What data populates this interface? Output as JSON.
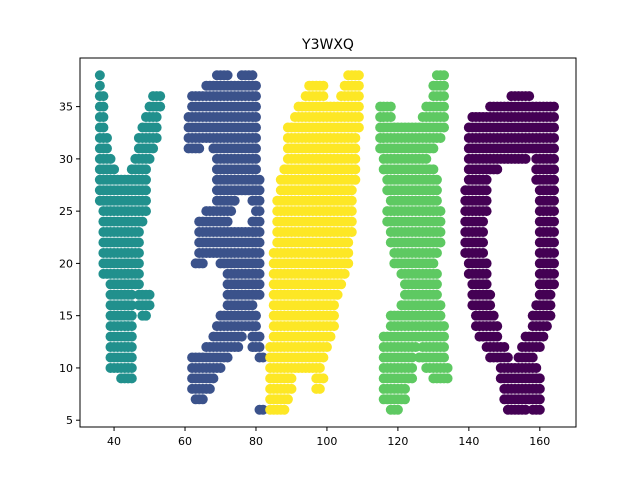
{
  "chart_data": {
    "type": "scatter",
    "title": "Y3WXQ",
    "xlabel": "",
    "ylabel": "",
    "xlim": [
      30.4,
      170.2
    ],
    "ylim": [
      4.35,
      39.65
    ],
    "xticks": [
      40,
      60,
      80,
      100,
      120,
      140,
      160
    ],
    "yticks": [
      5,
      10,
      15,
      20,
      25,
      30,
      35
    ],
    "xtick_labels": [
      "40",
      "60",
      "80",
      "100",
      "120",
      "140",
      "160"
    ],
    "ytick_labels": [
      "5",
      "10",
      "15",
      "20",
      "25",
      "30",
      "35"
    ],
    "grid": false,
    "legend": null,
    "marker_spacing_x": 1.0,
    "marker_spacing_y": 1.0,
    "series": [
      {
        "name": "Y",
        "color": "#21908d",
        "row_runs": [
          [
            38,
            36,
            36
          ],
          [
            37,
            36,
            36
          ],
          [
            36,
            36,
            37
          ],
          [
            36,
            51,
            53
          ],
          [
            35,
            36,
            37
          ],
          [
            35,
            50,
            53
          ],
          [
            34,
            36,
            37
          ],
          [
            34,
            49,
            52
          ],
          [
            33,
            36,
            37
          ],
          [
            33,
            48,
            52
          ],
          [
            32,
            36,
            38
          ],
          [
            32,
            47,
            52
          ],
          [
            31,
            36,
            38
          ],
          [
            31,
            47,
            51
          ],
          [
            30,
            36,
            39
          ],
          [
            30,
            46,
            50
          ],
          [
            29,
            36,
            40
          ],
          [
            29,
            45,
            49
          ],
          [
            28,
            36,
            49
          ],
          [
            27,
            36,
            49
          ],
          [
            26,
            36,
            49
          ],
          [
            25,
            37,
            49
          ],
          [
            24,
            37,
            48
          ],
          [
            23,
            37,
            47
          ],
          [
            22,
            37,
            47
          ],
          [
            21,
            37,
            47
          ],
          [
            20,
            37,
            47
          ],
          [
            19,
            37,
            47
          ],
          [
            18,
            39,
            47
          ],
          [
            17,
            39,
            45
          ],
          [
            17,
            47,
            50
          ],
          [
            16,
            39,
            45
          ],
          [
            16,
            47,
            50
          ],
          [
            15,
            39,
            45
          ],
          [
            15,
            48,
            49
          ],
          [
            14,
            39,
            45
          ],
          [
            13,
            39,
            45
          ],
          [
            12,
            39,
            45
          ],
          [
            11,
            39,
            45
          ],
          [
            10,
            39,
            45
          ],
          [
            9,
            42,
            45
          ]
        ]
      },
      {
        "name": "3",
        "color": "#3b528b",
        "row_runs": [
          [
            38,
            69,
            72
          ],
          [
            38,
            76,
            79
          ],
          [
            37,
            66,
            80
          ],
          [
            36,
            62,
            80
          ],
          [
            35,
            62,
            80
          ],
          [
            34,
            61,
            80
          ],
          [
            33,
            61,
            80
          ],
          [
            32,
            61,
            80
          ],
          [
            31,
            61,
            64
          ],
          [
            31,
            68,
            80
          ],
          [
            30,
            69,
            80
          ],
          [
            29,
            69,
            80
          ],
          [
            28,
            69,
            81
          ],
          [
            27,
            69,
            81
          ],
          [
            26,
            69,
            74
          ],
          [
            26,
            79,
            81
          ],
          [
            25,
            66,
            73
          ],
          [
            25,
            80,
            81
          ],
          [
            24,
            64,
            72
          ],
          [
            24,
            79,
            81
          ],
          [
            23,
            64,
            81
          ],
          [
            22,
            64,
            81
          ],
          [
            21,
            64,
            81
          ],
          [
            20,
            63,
            65
          ],
          [
            20,
            70,
            81
          ],
          [
            19,
            72,
            81
          ],
          [
            18,
            72,
            81
          ],
          [
            17,
            72,
            81
          ],
          [
            16,
            72,
            79
          ],
          [
            15,
            70,
            80
          ],
          [
            14,
            69,
            80
          ],
          [
            13,
            68,
            76
          ],
          [
            13,
            79,
            81
          ],
          [
            12,
            66,
            75
          ],
          [
            12,
            79,
            81
          ],
          [
            11,
            62,
            72
          ],
          [
            11,
            81,
            82
          ],
          [
            10,
            62,
            70
          ],
          [
            9,
            62,
            68
          ],
          [
            8,
            62,
            67
          ],
          [
            7,
            63,
            65
          ],
          [
            6,
            81,
            82
          ]
        ]
      },
      {
        "name": "W",
        "color": "#fde725",
        "row_runs": [
          [
            38,
            106,
            109
          ],
          [
            37,
            95,
            99
          ],
          [
            37,
            105,
            109
          ],
          [
            36,
            94,
            99
          ],
          [
            36,
            104,
            109
          ],
          [
            35,
            92,
            109
          ],
          [
            34,
            91,
            109
          ],
          [
            33,
            89,
            109
          ],
          [
            32,
            89,
            108
          ],
          [
            31,
            89,
            108
          ],
          [
            30,
            89,
            108
          ],
          [
            29,
            88,
            108
          ],
          [
            28,
            87,
            108
          ],
          [
            27,
            87,
            107
          ],
          [
            26,
            86,
            107
          ],
          [
            25,
            86,
            107
          ],
          [
            24,
            86,
            107
          ],
          [
            23,
            86,
            107
          ],
          [
            22,
            86,
            106
          ],
          [
            21,
            85,
            106
          ],
          [
            20,
            85,
            106
          ],
          [
            19,
            85,
            105
          ],
          [
            18,
            85,
            104
          ],
          [
            17,
            85,
            103
          ],
          [
            16,
            85,
            102
          ],
          [
            15,
            85,
            102
          ],
          [
            14,
            85,
            102
          ],
          [
            13,
            85,
            101
          ],
          [
            12,
            84,
            100
          ],
          [
            11,
            84,
            99
          ],
          [
            10,
            84,
            98
          ],
          [
            9,
            84,
            90
          ],
          [
            9,
            97,
            99
          ],
          [
            8,
            84,
            90
          ],
          [
            8,
            97,
            98
          ],
          [
            7,
            84,
            89
          ],
          [
            6,
            84,
            88
          ]
        ]
      },
      {
        "name": "X",
        "color": "#5ec962",
        "row_runs": [
          [
            38,
            131,
            133
          ],
          [
            37,
            130,
            133
          ],
          [
            36,
            130,
            133
          ],
          [
            35,
            115,
            118
          ],
          [
            35,
            128,
            133
          ],
          [
            34,
            115,
            118
          ],
          [
            34,
            127,
            133
          ],
          [
            33,
            115,
            133
          ],
          [
            32,
            115,
            132
          ],
          [
            31,
            115,
            130
          ],
          [
            30,
            116,
            128
          ],
          [
            29,
            116,
            130
          ],
          [
            28,
            117,
            131
          ],
          [
            27,
            117,
            131
          ],
          [
            26,
            118,
            131
          ],
          [
            25,
            117,
            132
          ],
          [
            24,
            117,
            132
          ],
          [
            23,
            118,
            132
          ],
          [
            22,
            118,
            132
          ],
          [
            21,
            119,
            131
          ],
          [
            20,
            119,
            130
          ],
          [
            19,
            121,
            131
          ],
          [
            18,
            122,
            131
          ],
          [
            17,
            122,
            131
          ],
          [
            16,
            121,
            132
          ],
          [
            15,
            118,
            132
          ],
          [
            14,
            118,
            133
          ],
          [
            13,
            116,
            133
          ],
          [
            12,
            116,
            125
          ],
          [
            12,
            127,
            133
          ],
          [
            11,
            116,
            124
          ],
          [
            11,
            126,
            133
          ],
          [
            10,
            116,
            124
          ],
          [
            10,
            128,
            134
          ],
          [
            9,
            116,
            124
          ],
          [
            9,
            130,
            134
          ],
          [
            8,
            116,
            122
          ],
          [
            7,
            116,
            122
          ],
          [
            6,
            118,
            120
          ]
        ]
      },
      {
        "name": "Q",
        "color": "#440154",
        "row_runs": [
          [
            36,
            152,
            157
          ],
          [
            35,
            146,
            164
          ],
          [
            34,
            141,
            164
          ],
          [
            33,
            140,
            164
          ],
          [
            32,
            140,
            164
          ],
          [
            31,
            140,
            164
          ],
          [
            30,
            140,
            156
          ],
          [
            30,
            159,
            164
          ],
          [
            29,
            140,
            148
          ],
          [
            29,
            159,
            164
          ],
          [
            28,
            140,
            145
          ],
          [
            28,
            159,
            164
          ],
          [
            27,
            139,
            145
          ],
          [
            27,
            160,
            164
          ],
          [
            26,
            139,
            145
          ],
          [
            26,
            160,
            164
          ],
          [
            25,
            139,
            145
          ],
          [
            25,
            160,
            164
          ],
          [
            24,
            139,
            144
          ],
          [
            24,
            160,
            164
          ],
          [
            23,
            139,
            144
          ],
          [
            23,
            160,
            164
          ],
          [
            22,
            139,
            144
          ],
          [
            22,
            160,
            164
          ],
          [
            21,
            139,
            144
          ],
          [
            21,
            160,
            164
          ],
          [
            20,
            140,
            145
          ],
          [
            20,
            160,
            164
          ],
          [
            19,
            140,
            145
          ],
          [
            19,
            160,
            164
          ],
          [
            18,
            141,
            145
          ],
          [
            18,
            160,
            164
          ],
          [
            17,
            141,
            146
          ],
          [
            17,
            160,
            163
          ],
          [
            16,
            141,
            146
          ],
          [
            16,
            159,
            163
          ],
          [
            15,
            142,
            147
          ],
          [
            15,
            158,
            163
          ],
          [
            14,
            142,
            148
          ],
          [
            14,
            158,
            162
          ],
          [
            13,
            143,
            148
          ],
          [
            13,
            156,
            161
          ],
          [
            12,
            145,
            150
          ],
          [
            12,
            155,
            160
          ],
          [
            11,
            146,
            151
          ],
          [
            11,
            154,
            158
          ],
          [
            10,
            149,
            159
          ],
          [
            9,
            149,
            160
          ],
          [
            8,
            150,
            160
          ],
          [
            7,
            150,
            160
          ],
          [
            6,
            151,
            156
          ],
          [
            6,
            158,
            160
          ]
        ]
      }
    ]
  }
}
